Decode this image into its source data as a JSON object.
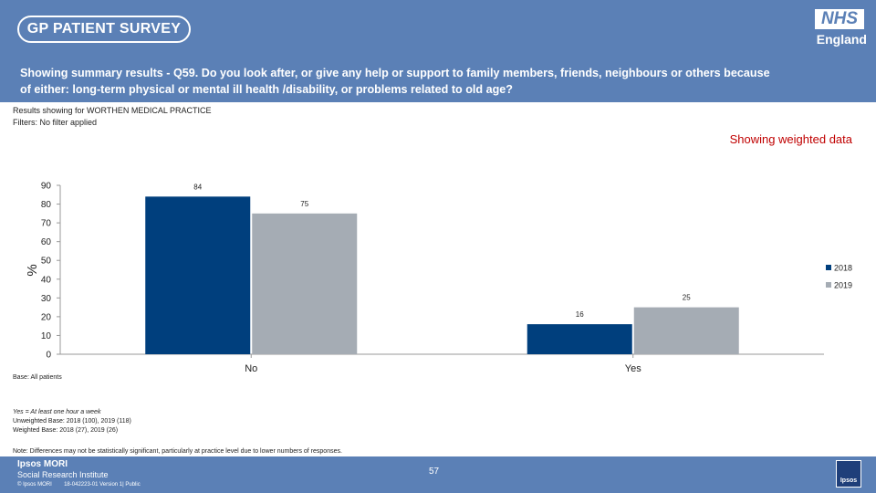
{
  "header": {
    "survey_logo": "GP PATIENT SURVEY",
    "nhs_logo": "NHS",
    "nhs_region": "England"
  },
  "question": {
    "line1": "Showing summary results - Q59.  Do you look after, or give any help or support to family members, friends, neighbours or others because",
    "line2": "of either: long-term physical or mental ill health /disability, or problems related to old age?"
  },
  "meta": {
    "results_for": "Results showing for WORTHEN MEDICAL PRACTICE",
    "filters": "Filters: No filter applied",
    "weighted": "Showing weighted data"
  },
  "notes": {
    "base": "Base: All patients",
    "yes_definition": "Yes = At least one hour a week",
    "unweighted": "Unweighted Base: 2018 (100), 2019 (118)",
    "weighted": "Weighted Base: 2018 (27), 2019 (26)",
    "differences": "Note: Differences may not be statistically significant, particularly at practice level due to lower numbers of responses."
  },
  "footer": {
    "ipsos_name": "Ipsos MORI",
    "ipsos_sub": "Social Research Institute",
    "reference": "© Ipsos MORI        18-042223-01 Version 1| Public",
    "page_number": "57",
    "ipsos_logo": "Ipsos"
  },
  "colors": {
    "header_bg": "#5b80b6",
    "series_2018": "#003f7d",
    "series_2019": "#a5acb4",
    "weighted_text": "#c00000"
  },
  "chart_data": {
    "type": "bar",
    "categories": [
      "No",
      "Yes"
    ],
    "series": [
      {
        "name": "2018",
        "values": [
          84,
          16
        ],
        "color": "#003f7d"
      },
      {
        "name": "2019",
        "values": [
          75,
          25
        ],
        "color": "#a5acb4"
      }
    ],
    "ylabel": "%",
    "ylim": [
      0,
      90
    ],
    "yticks": [
      0,
      10,
      20,
      30,
      40,
      50,
      60,
      70,
      80,
      90
    ],
    "legend_position": "right",
    "grid": false
  }
}
